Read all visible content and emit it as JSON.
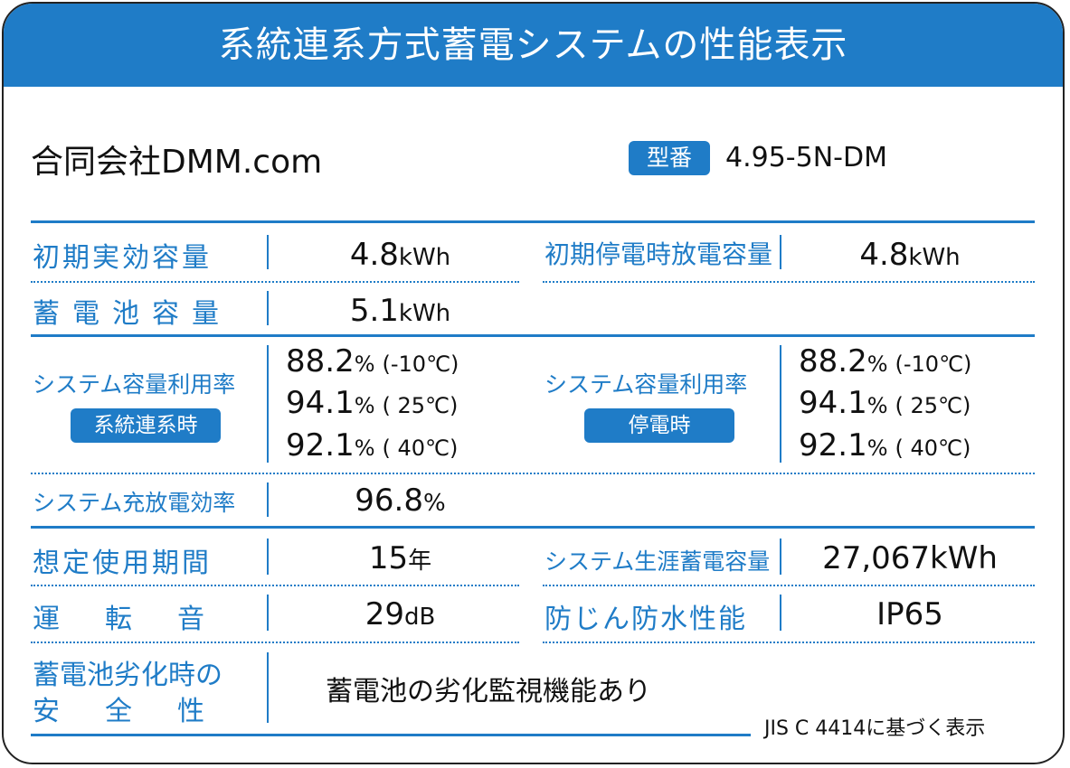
{
  "header": {
    "title": "系統連系方式蓄電システムの性能表示"
  },
  "company": "合同会社DMM.com",
  "model": {
    "badge": "型番",
    "value": "4.95-5N-DM"
  },
  "rows": {
    "initial_capacity": {
      "label": "初期実効容量",
      "value": "4.8",
      "unit": "kWh"
    },
    "outage_capacity": {
      "label": "初期停電時放電容量",
      "value": "4.8",
      "unit": "kWh"
    },
    "battery_capacity": {
      "label": "蓄電池容量",
      "value": "5.1",
      "unit": "kWh"
    },
    "utilization_grid": {
      "label": "システム容量利用率",
      "badge": "系統連系時",
      "values": [
        {
          "value": "88.2",
          "unit": "%",
          "temp": "(-10℃)"
        },
        {
          "value": "94.1",
          "unit": "%",
          "temp": "( 25℃)"
        },
        {
          "value": "92.1",
          "unit": "%",
          "temp": "( 40℃)"
        }
      ]
    },
    "utilization_outage": {
      "label": "システム容量利用率",
      "badge": "停電時",
      "values": [
        {
          "value": "88.2",
          "unit": "%",
          "temp": "(-10℃)"
        },
        {
          "value": "94.1",
          "unit": "%",
          "temp": "( 25℃)"
        },
        {
          "value": "92.1",
          "unit": "%",
          "temp": "( 40℃)"
        }
      ]
    },
    "charge_efficiency": {
      "label": "システム充放電効率",
      "value": "96.8",
      "unit": "%"
    },
    "lifetime": {
      "label": "想定使用期間",
      "value": "15",
      "unit": "年"
    },
    "lifetime_capacity": {
      "label": "システム生涯蓄電容量",
      "value": "27,067kWh"
    },
    "noise": {
      "label": "運　転　音",
      "value": "29",
      "unit": "dB"
    },
    "ingress": {
      "label": "防じん防水性能",
      "value": "IP65"
    },
    "safety": {
      "label_line1": "蓄電池劣化時の",
      "label_line2": "安　全　性",
      "value": "蓄電池の劣化監視機能あり"
    }
  },
  "footer_note": "JIS C 4414に基づく表示",
  "colors": {
    "accent": "#1f7cc7",
    "text": "#111111",
    "background": "#ffffff"
  }
}
